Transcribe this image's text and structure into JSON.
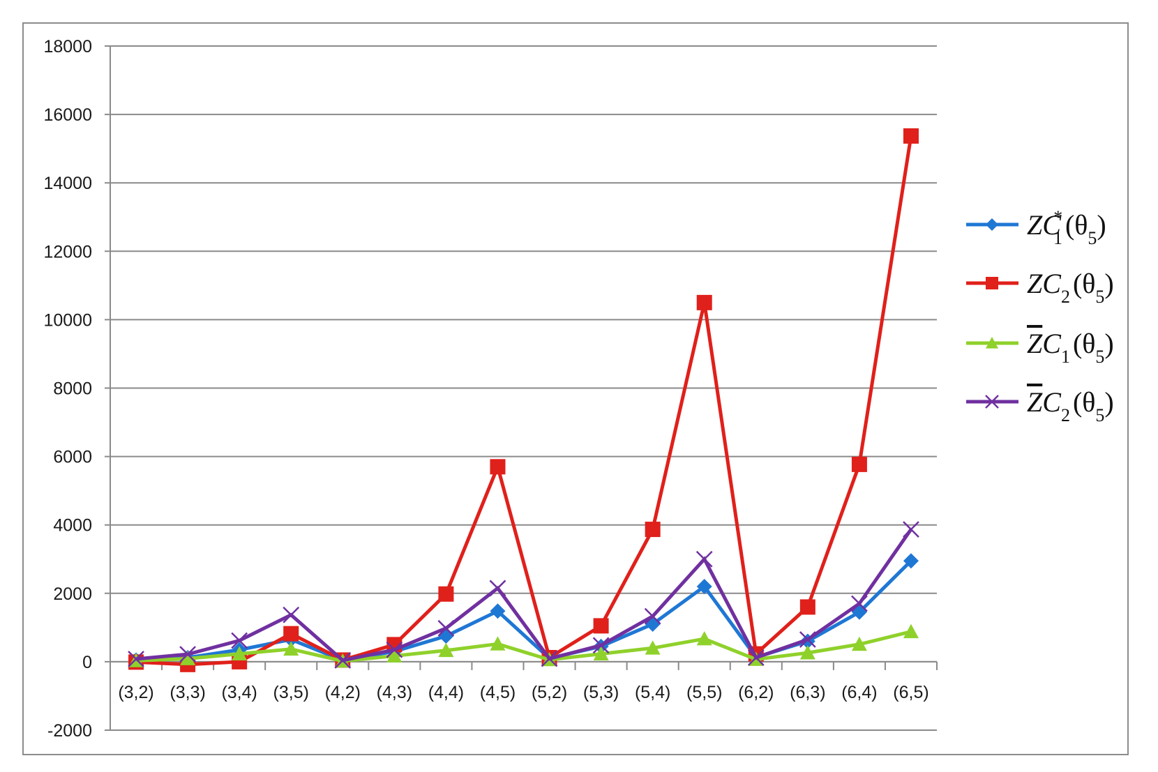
{
  "chart_data": {
    "type": "line",
    "title": "",
    "xlabel": "",
    "ylabel": "",
    "categories": [
      "(3,2)",
      "(3,3)",
      "(3,4)",
      "(3,5)",
      "(4,2)",
      "(4,3)",
      "(4,4)",
      "(4,5)",
      "(5,2)",
      "(5,3)",
      "(5,4)",
      "(5,5)",
      "(6,2)",
      "(6,3)",
      "(6,4)",
      "(6,5)"
    ],
    "ylim": [
      -2000,
      18000
    ],
    "yticks": [
      -2000,
      0,
      2000,
      4000,
      6000,
      8000,
      10000,
      12000,
      14000,
      16000,
      18000
    ],
    "grid": "horizontal",
    "legend_position": "right",
    "series": [
      {
        "name": "ZC1*(θ5)",
        "legend": {
          "over": "",
          "base": "ZC",
          "sub": "1",
          "sup": "*",
          "arg": "(θ",
          "argsub": "5",
          "close": ")"
        },
        "color": "#1f77d4",
        "marker": "diamond",
        "values": [
          50,
          120,
          350,
          650,
          40,
          300,
          750,
          1480,
          100,
          450,
          1100,
          2200,
          130,
          600,
          1450,
          2950
        ]
      },
      {
        "name": "ZC2(θ5)",
        "legend": {
          "over": "",
          "base": "ZC",
          "sub": "2",
          "sup": "",
          "arg": "(θ",
          "argsub": "5",
          "close": ")"
        },
        "color": "#e0201b",
        "marker": "square",
        "values": [
          -10,
          -80,
          0,
          820,
          50,
          500,
          1980,
          5700,
          120,
          1050,
          3870,
          10500,
          230,
          1600,
          5770,
          15370
        ]
      },
      {
        "name": "Z̄C1(θ5)",
        "legend": {
          "over": "Z",
          "base": "C",
          "sub": "1",
          "sup": "",
          "arg": "(θ",
          "argsub": "5",
          "close": ")"
        },
        "color": "#8fd12b",
        "marker": "triangle",
        "values": [
          30,
          90,
          230,
          370,
          20,
          170,
          330,
          520,
          60,
          230,
          400,
          670,
          70,
          260,
          510,
          880
        ]
      },
      {
        "name": "Z̄C2(θ5)",
        "legend": {
          "over": "Z",
          "base": "C",
          "sub": "2",
          "sup": "",
          "arg": "(θ",
          "argsub": "5",
          "close": ")"
        },
        "color": "#7030a0",
        "marker": "x",
        "values": [
          80,
          220,
          620,
          1370,
          40,
          350,
          980,
          2150,
          90,
          480,
          1330,
          3000,
          120,
          650,
          1700,
          3870
        ]
      }
    ]
  }
}
